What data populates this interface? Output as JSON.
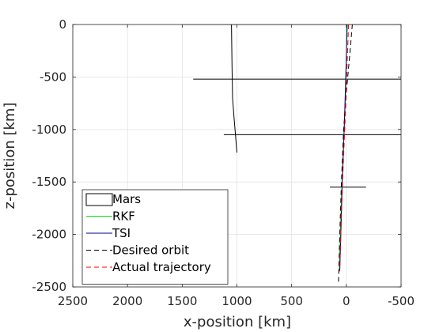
{
  "chart_data": {
    "type": "line",
    "title": "",
    "xlabel": "x-position [km]",
    "ylabel": "z-position [km]",
    "xlim": [
      2500,
      -500
    ],
    "ylim": [
      -2500,
      0
    ],
    "x_reversed": true,
    "xticks": [
      2500,
      2000,
      1500,
      1000,
      500,
      0,
      -500
    ],
    "xtick_labels": [
      "2500",
      "2000",
      "1500",
      "1000",
      "500",
      "0",
      "-500"
    ],
    "yticks": [
      0,
      -500,
      -1000,
      -1500,
      -2000,
      -2500
    ],
    "ytick_labels": [
      "0",
      "-500",
      "-1000",
      "-1500",
      "-2000",
      "-2500"
    ],
    "grid": true,
    "legend_position": "bottom-left",
    "series": [
      {
        "name": "Mars",
        "color": "#000000",
        "style": "solid",
        "segments": [
          [
            [
              1500,
              0
            ],
            [
              -500,
              0
            ]
          ],
          [
            [
              1400,
              -520
            ],
            [
              -500,
              -520
            ]
          ],
          [
            [
              1120,
              -1050
            ],
            [
              -500,
              -1050
            ]
          ],
          [
            [
              150,
              -1550
            ],
            [
              -180,
              -1550
            ]
          ],
          [
            [
              1050,
              0
            ],
            [
              1045,
              -400
            ],
            [
              1040,
              -700
            ],
            [
              1025,
              -900
            ],
            [
              1000,
              -1220
            ]
          ]
        ]
      },
      {
        "name": "RKF",
        "color": "#00dd00",
        "style": "solid",
        "points": [
          [
            -10,
            0
          ],
          [
            0,
            -300
          ],
          [
            5,
            -600
          ],
          [
            20,
            -1000
          ],
          [
            40,
            -1500
          ],
          [
            55,
            -2000
          ],
          [
            65,
            -2350
          ]
        ]
      },
      {
        "name": "TSI",
        "color": "#00008b",
        "style": "solid",
        "points": [
          [
            -5,
            0
          ],
          [
            0,
            -300
          ],
          [
            8,
            -600
          ],
          [
            20,
            -1000
          ],
          [
            38,
            -1500
          ],
          [
            50,
            -2000
          ],
          [
            60,
            -2350
          ]
        ]
      },
      {
        "name": "Desired orbit",
        "color": "#000000",
        "style": "dashed",
        "points": [
          [
            -55,
            0
          ],
          [
            -30,
            -300
          ],
          [
            0,
            -650
          ],
          [
            25,
            -1000
          ],
          [
            45,
            -1500
          ],
          [
            60,
            -2000
          ],
          [
            72,
            -2450
          ]
        ]
      },
      {
        "name": "Actual trajectory",
        "color": "#ff0000",
        "style": "dashed",
        "points": [
          [
            -20,
            0
          ],
          [
            -10,
            -300
          ],
          [
            0,
            -600
          ],
          [
            15,
            -1000
          ],
          [
            35,
            -1500
          ],
          [
            50,
            -2000
          ],
          [
            62,
            -2350
          ]
        ]
      }
    ]
  }
}
